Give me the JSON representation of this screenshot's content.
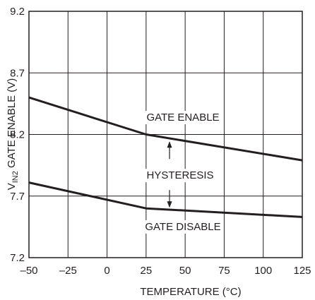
{
  "chart_data": {
    "type": "line",
    "xlabel": "TEMPERATURE (°C)",
    "ylabel": {
      "main": "V",
      "sub": "IN2",
      "rest": " GATE ENABLE (V)"
    },
    "xlim": [
      -50,
      125
    ],
    "ylim": [
      7.2,
      9.2
    ],
    "x_ticks": [
      -50,
      -25,
      0,
      25,
      50,
      75,
      100,
      125
    ],
    "x_tick_labels": [
      "–50",
      "–25",
      "0",
      "25",
      "50",
      "75",
      "100",
      "125"
    ],
    "y_ticks": [
      7.2,
      7.7,
      8.2,
      8.7,
      9.2
    ],
    "y_tick_labels": [
      "7.2",
      "7.7",
      "8.2",
      "8.7",
      "9.2"
    ],
    "grid": true,
    "series": [
      {
        "name": "GATE ENABLE",
        "x": [
          -50,
          25,
          125
        ],
        "y": [
          8.5,
          8.2,
          7.99
        ]
      },
      {
        "name": "GATE DISABLE",
        "x": [
          -50,
          25,
          125
        ],
        "y": [
          7.81,
          7.6,
          7.53
        ]
      }
    ],
    "annotations": {
      "hysteresis": {
        "text": "HYSTERESIS",
        "x": 40,
        "y_top": 8.15,
        "y_bottom": 7.6
      }
    },
    "line_color": "#231f20",
    "grid_color": "#231f20"
  }
}
